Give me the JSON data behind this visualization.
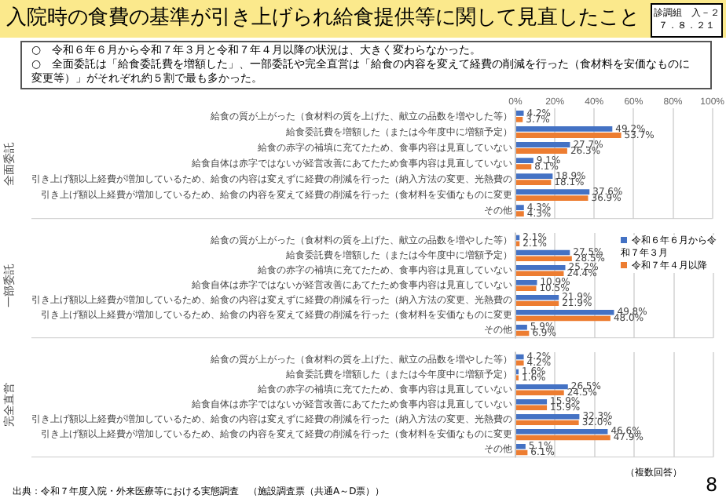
{
  "chart_data": [
    {
      "type": "bar",
      "orientation": "horizontal",
      "title": "入院時の食費の基準が引き上げられ給食提供等に関して見直したこと",
      "subtitle": "○　令和６年６月から令和７年３月と令和７年４月以降の状況は、大きく変わらなかった。\n○　全面委託は「給食委託費を増額した」、一部委託や完全直営は「給食の内容を変えて経費の削減を行った（食材料を安価なものに変更等）」がそれぞれ約５割で最も多かった。",
      "annotations": [
        "診調組　入－２",
        "７．８．２１"
      ],
      "ylabel": "全面委託",
      "categories": [
        "給食の質が上がった（食材料の質を上げた、献立の品数を増やした等）",
        "給食委託費を増額した（または今年度中に増額予定）",
        "給食の赤字の補填に充てたため、食事内容は見直していない",
        "給食自体は赤字ではないが経営改善にあてたため食事内容は見直していない",
        "引き上げ額以上経費が増加しているため、給食の内容は変えずに経費の削減を行った（納入方法の変更、光熱費の",
        "引き上げ額以上経費が増加しているため、給食の内容を変えて経費の削減を行った（食材料を安価なものに変更",
        "その他"
      ],
      "xlim": [
        0,
        100
      ],
      "xticks": [
        {
          "value": 0,
          "label": "0%"
        },
        {
          "value": 20,
          "label": "20%"
        },
        {
          "value": 40,
          "label": "40%"
        },
        {
          "value": 60,
          "label": "60%"
        },
        {
          "value": 80,
          "label": "80%"
        },
        {
          "value": 100,
          "label": "100%"
        }
      ],
      "grid": "x",
      "series": [
        {
          "color": "#4472c4",
          "values": [
            4.2,
            49.2,
            27.7,
            9.1,
            18.9,
            37.6,
            4.3
          ],
          "value_labels": [
            "4.2%",
            "49.2%",
            "27.7%",
            "9.1%",
            "18.9%",
            "37.6%",
            "4.3%"
          ]
        },
        {
          "color": "#ed7d31",
          "values": [
            3.7,
            53.7,
            26.3,
            8.1,
            18.1,
            36.9,
            4.3
          ],
          "value_labels": [
            "3.7%",
            "53.7%",
            "26.3%",
            "8.1%",
            "18.1%",
            "36.9%",
            "4.3%"
          ]
        }
      ]
    },
    {
      "type": "bar",
      "orientation": "horizontal",
      "ylabel": "一部委託",
      "categories": [
        "給食の質が上がった（食材料の質を上げた、献立の品数を増やした等）",
        "給食委託費を増額した（または今年度中に増額予定）",
        "給食の赤字の補填に充てたため、食事内容は見直していない",
        "給食自体は赤字ではないが経営改善にあてたため食事内容は見直していない",
        "引き上げ額以上経費が増加しているため、給食の内容は変えずに経費の削減を行った（納入方法の変更、光熱費の",
        "引き上げ額以上経費が増加しているため、給食の内容を変えて経費の削減を行った（食材料を安価なものに変更",
        "その他"
      ],
      "xlim": [
        0,
        100
      ],
      "xticks": [
        0,
        20,
        40,
        60,
        80,
        100
      ],
      "grid": "x",
      "tick_labels": "y",
      "legend": "right",
      "series": [
        {
          "name": "令和６年６月から令和７年３月",
          "color": "#4472c4",
          "values": [
            2.1,
            27.5,
            25.2,
            10.9,
            21.9,
            49.8,
            5.9
          ],
          "value_labels": [
            "2.1%",
            "27.5%",
            "25.2%",
            "10.9%",
            "21.9%",
            "49.8%",
            "5.9%"
          ]
        },
        {
          "name": "令和７年４月以降",
          "color": "#ed7d31",
          "values": [
            2.1,
            28.5,
            24.4,
            10.5,
            21.9,
            48.0,
            6.9
          ],
          "value_labels": [
            "2.1%",
            "28.5%",
            "24.4%",
            "10.5%",
            "21.9%",
            "48.0%",
            "6.9%"
          ]
        }
      ]
    },
    {
      "type": "bar",
      "orientation": "horizontal",
      "ylabel": "完全直営",
      "annotations": [
        "（複数回答）",
        "出典：令和７年度入院・外来医療等における実態調査　（施設調査票（共通A～D票））",
        "8"
      ],
      "categories": [
        "給食の質が上がった（食材料の質を上げた、献立の品数を増やした等）",
        "給食委託費を増額した（または今年度中に増額予定）",
        "給食の赤字の補填に充てたため、食事内容は見直していない",
        "給食自体は赤字ではないが経営改善にあてたため食事内容は見直していない",
        "引き上げ額以上経費が増加しているため、給食の内容は変えずに経費の削減を行った（納入方法の変更、光熱費の",
        "引き上げ額以上経費が増加しているため、給食の内容を変えて経費の削減を行った（食材料を安価なものに変更",
        "その他"
      ],
      "xlim": [
        0,
        100
      ],
      "xticks": [
        0,
        20,
        40,
        60,
        80,
        100
      ],
      "grid": "x",
      "tick_labels": "y",
      "series": [
        {
          "color": "#4472c4",
          "values": [
            4.2,
            1.6,
            26.5,
            15.9,
            32.3,
            46.6,
            5.1
          ],
          "value_labels": [
            "4.2%",
            "1.6%",
            "26.5%",
            "15.9%",
            "32.3%",
            "46.6%",
            "5.1%"
          ]
        },
        {
          "color": "#ed7d31",
          "values": [
            4.2,
            1.6,
            24.5,
            15.9,
            32.0,
            47.9,
            6.1
          ],
          "value_labels": [
            "4.2%",
            "1.6%",
            "24.5%",
            "15.9%",
            "32.0%",
            "47.9%",
            "6.1%"
          ]
        }
      ]
    }
  ]
}
